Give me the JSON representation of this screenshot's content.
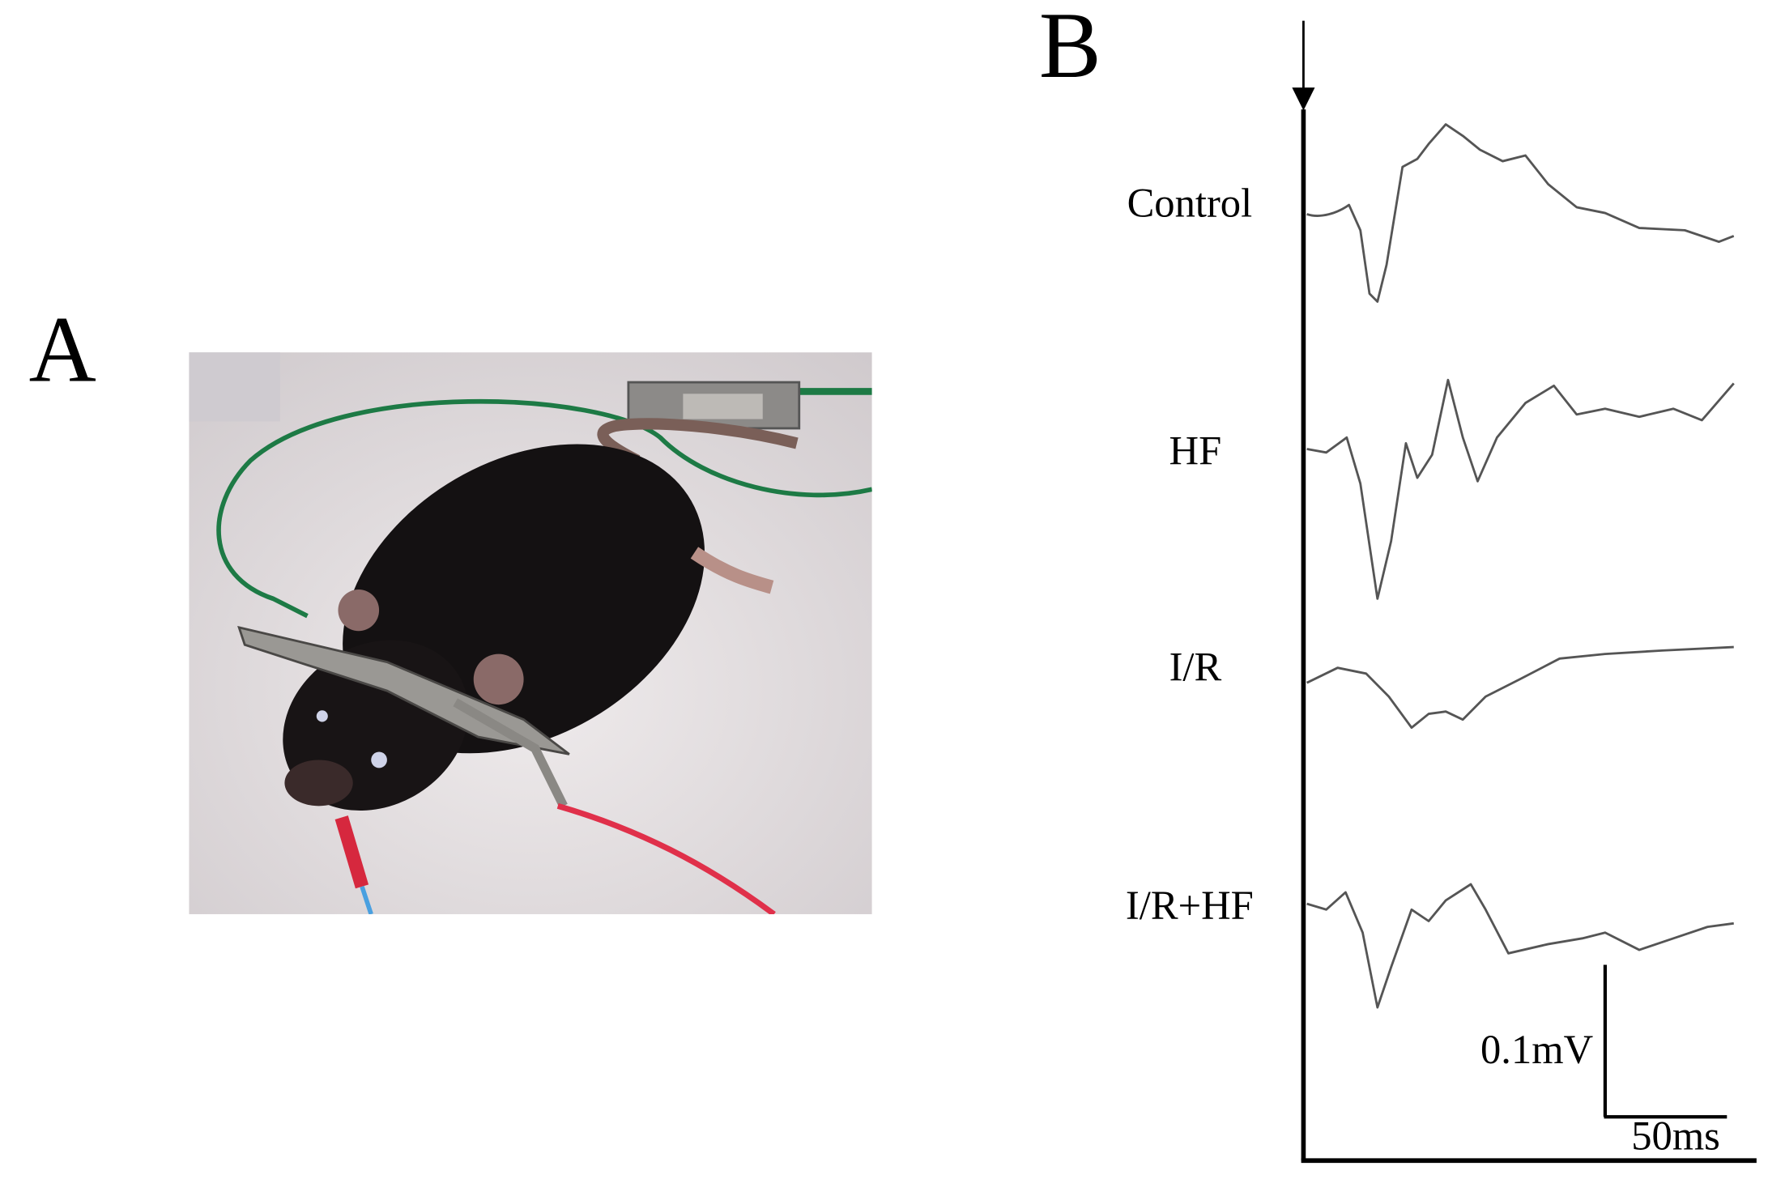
{
  "panels": {
    "a": {
      "label": "A"
    },
    "b": {
      "label": "B",
      "traces": [
        {
          "label": "Control"
        },
        {
          "label": "HF"
        },
        {
          "label": "I/R"
        },
        {
          "label": "I/R+HF"
        }
      ],
      "scale_bar": {
        "amplitude": "0.1mV",
        "time": "50ms"
      }
    }
  }
}
